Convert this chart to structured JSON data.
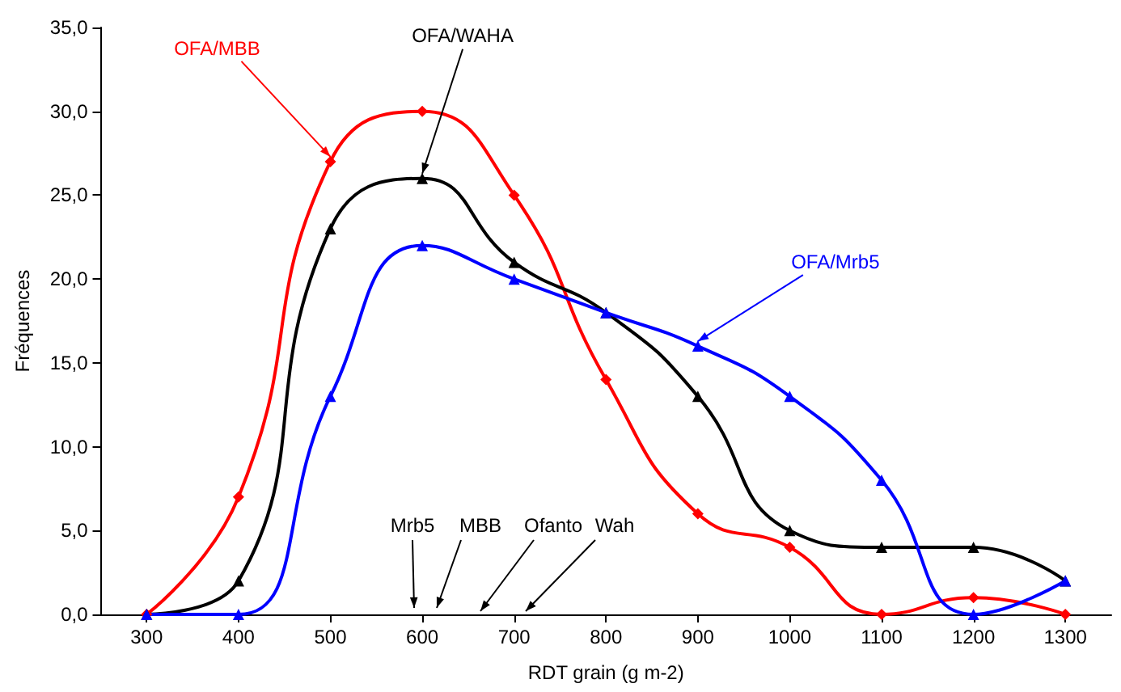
{
  "chart_data": {
    "type": "line",
    "xlabel": "RDT grain (g m-2)",
    "ylabel": "Fréquences",
    "x": [
      300,
      400,
      500,
      600,
      700,
      800,
      900,
      1000,
      1100,
      1200,
      1300
    ],
    "series": [
      {
        "name": "OFA/MBB",
        "color": "#ff0000",
        "marker": "diamond",
        "values": [
          0,
          7,
          27,
          30,
          25,
          14,
          6,
          4,
          0,
          1,
          0
        ]
      },
      {
        "name": "OFA/WAHA",
        "color": "#000000",
        "marker": "triangle",
        "values": [
          0,
          2,
          23,
          26,
          21,
          18,
          13,
          5,
          4,
          4,
          2
        ]
      },
      {
        "name": "OFA/Mrb5",
        "color": "#0000ff",
        "marker": "triangle",
        "values": [
          0,
          0,
          13,
          22,
          20,
          18,
          16,
          13,
          8,
          0,
          2
        ]
      }
    ],
    "xlim": [
      250,
      1350
    ],
    "xticks": [
      300,
      400,
      500,
      600,
      700,
      800,
      900,
      1000,
      1100,
      1200,
      1300
    ],
    "ylim": [
      0,
      35
    ],
    "yticks": [
      {
        "value": 0,
        "label": "0,0"
      },
      {
        "value": 5,
        "label": "5,0"
      },
      {
        "value": 10,
        "label": "10,0"
      },
      {
        "value": 15,
        "label": "15,0"
      },
      {
        "value": 20,
        "label": "20,0"
      },
      {
        "value": 25,
        "label": "25,0"
      },
      {
        "value": 30,
        "label": "30,0"
      },
      {
        "value": 35,
        "label": "35,0"
      }
    ],
    "annotations": [
      "Mrb5",
      "MBB",
      "Ofanto",
      "Wah"
    ],
    "grid": false,
    "legend": false,
    "line_style": "solid"
  }
}
